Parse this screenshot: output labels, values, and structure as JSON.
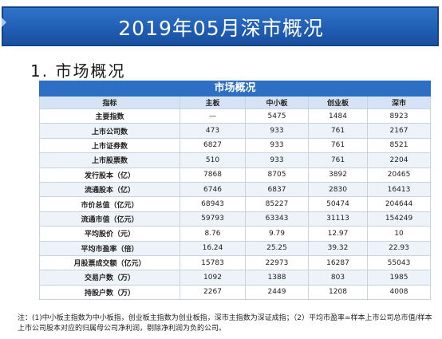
{
  "banner": {
    "title": "2019年05月深市概况"
  },
  "section": {
    "title": "1. 市场概况"
  },
  "table": {
    "title": "市场概况",
    "columns": [
      "指标",
      "主板",
      "中小板",
      "创业板",
      "深市"
    ],
    "rows": [
      [
        "主要指数",
        "—",
        "5475",
        "1484",
        "8923"
      ],
      [
        "上市公司数",
        "473",
        "933",
        "761",
        "2167"
      ],
      [
        "上市证券数",
        "6827",
        "933",
        "761",
        "8521"
      ],
      [
        "上市股票数",
        "510",
        "933",
        "761",
        "2204"
      ],
      [
        "发行股本（亿）",
        "7868",
        "8705",
        "3892",
        "20465"
      ],
      [
        "流通股本（亿）",
        "6746",
        "6837",
        "2830",
        "16413"
      ],
      [
        "市价总值（亿元）",
        "68943",
        "85227",
        "50474",
        "204644"
      ],
      [
        "流通市值（亿元）",
        "59793",
        "63343",
        "31113",
        "154249"
      ],
      [
        "平均股价（元）",
        "8.76",
        "9.79",
        "12.97",
        "10"
      ],
      [
        "平均市盈率（倍）",
        "16.24",
        "25.25",
        "39.32",
        "22.93"
      ],
      [
        "月股票成交额（亿元）",
        "15783",
        "22973",
        "16287",
        "55043"
      ],
      [
        "交易户数（万）",
        "1092",
        "1388",
        "803",
        "1985"
      ],
      [
        "持股户数（万）",
        "2267",
        "2449",
        "1208",
        "4008"
      ]
    ]
  },
  "footnote": "注：(1)中小板主指数为中小板指，创业板主指数为创业板指，深市主指数为深证成指；（2）平均市盈率=样本上市公司总市值/样本上市公司股本对应的归属母公司净利润，剔除净利润为负的公司。"
}
